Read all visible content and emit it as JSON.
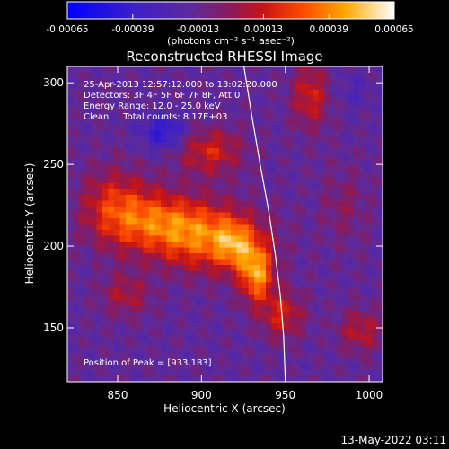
{
  "chart_data": {
    "type": "heatmap",
    "title": "Reconstructed RHESSI Image",
    "xlabel": "Heliocentric X (arcsec)",
    "ylabel": "Heliocentric Y (arcsec)",
    "xlim": [
      820,
      1008
    ],
    "ylim": [
      117,
      310
    ],
    "xticks": [
      850,
      900,
      950,
      1000
    ],
    "yticks": [
      150,
      200,
      250,
      300
    ],
    "colorbar": {
      "min": -0.00065,
      "max": 0.00065,
      "ticks": [
        "-0.00065",
        "-0.00039",
        "-0.00013",
        "0.00013",
        "0.00039",
        "0.00065"
      ],
      "tick_values": [
        -0.00065,
        -0.00039,
        -0.00013,
        0.00013,
        0.00039,
        0.00065
      ],
      "unit_label": "(photons cm⁻² s⁻¹ asec⁻²)",
      "colormap": "blue-purple-red-orange-yellow-white"
    },
    "info_lines": [
      "25-Apr-2013 12:57:12.000 to 13:02:20.000",
      "Detectors: 3F 4F 5F 6F 7F 8F, Att 0",
      "Energy Range: 12.0 - 25.0 keV",
      "Clean     Total counts: 8.17E+03"
    ],
    "peak_label": "Position of Peak = [933,183]",
    "peak": [
      933,
      183
    ],
    "limb": [
      [
        925,
        312
      ],
      [
        930,
        280
      ],
      [
        935,
        250
      ],
      [
        940,
        222
      ],
      [
        944,
        195
      ],
      [
        947,
        170
      ],
      [
        949,
        145
      ],
      [
        950,
        118
      ]
    ],
    "sources": [
      {
        "x": 905,
        "y": 205,
        "sx": 22,
        "sy": 14,
        "amp": 0.00045
      },
      {
        "x": 873,
        "y": 215,
        "sx": 20,
        "sy": 13,
        "amp": 0.00038
      },
      {
        "x": 848,
        "y": 225,
        "sx": 14,
        "sy": 16,
        "amp": 0.0003
      },
      {
        "x": 933,
        "y": 183,
        "sx": 7,
        "sy": 12,
        "amp": 0.00055
      },
      {
        "x": 920,
        "y": 200,
        "sx": 8,
        "sy": 10,
        "amp": 0.0003
      },
      {
        "x": 905,
        "y": 258,
        "sx": 14,
        "sy": 10,
        "amp": 0.0003
      },
      {
        "x": 965,
        "y": 292,
        "sx": 8,
        "sy": 14,
        "amp": 0.0003
      },
      {
        "x": 948,
        "y": 158,
        "sx": 9,
        "sy": 10,
        "amp": 0.0003
      },
      {
        "x": 855,
        "y": 170,
        "sx": 10,
        "sy": 9,
        "amp": 0.00022
      },
      {
        "x": 995,
        "y": 148,
        "sx": 9,
        "sy": 9,
        "amp": 0.00025
      },
      {
        "x": 985,
        "y": 225,
        "sx": 10,
        "sy": 16,
        "amp": 0.00012
      },
      {
        "x": 878,
        "y": 270,
        "sx": 10,
        "sy": 8,
        "amp": -0.0003
      },
      {
        "x": 990,
        "y": 295,
        "sx": 8,
        "sy": 8,
        "amp": -0.0001
      }
    ]
  },
  "timestamp": "13-May-2022 03:11"
}
